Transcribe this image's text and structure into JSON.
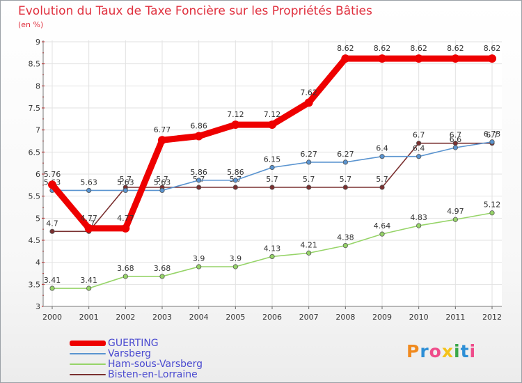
{
  "chart_data": {
    "type": "line",
    "title": "Evolution du Taux de Taxe Foncière sur les Propriétés Bâties",
    "unit": "(en %)",
    "x": [
      "2000",
      "2001",
      "2002",
      "2003",
      "2004",
      "2005",
      "2006",
      "2007",
      "2008",
      "2009",
      "2010",
      "2011",
      "2012"
    ],
    "ylim": [
      3,
      9
    ],
    "yticks": [
      "3",
      "3.5",
      "4",
      "4.5",
      "5",
      "5.5",
      "6",
      "6.5",
      "7",
      "7.5",
      "8",
      "8.5",
      "9"
    ],
    "series": [
      {
        "name": "Ham-sous-Varsberg",
        "color": "#96d468",
        "values": [
          3.41,
          3.41,
          3.68,
          3.68,
          3.9,
          3.9,
          4.13,
          4.21,
          4.38,
          4.64,
          4.83,
          4.97,
          5.12
        ],
        "labels": [
          "3.41",
          "3.41",
          "3.68",
          "3.68",
          "3.9",
          "3.9",
          "4.13",
          "4.21",
          "4.38",
          "4.64",
          "4.83",
          "4.97",
          "5.12"
        ]
      },
      {
        "name": "Bisten-en-Lorraine",
        "color": "#7a3030",
        "values": [
          4.7,
          4.7,
          5.7,
          5.7,
          5.7,
          5.7,
          5.7,
          5.7,
          5.7,
          5.7,
          6.7,
          6.7,
          6.7
        ],
        "labels": [
          "4.7",
          "4.7",
          "5.7",
          "5.7",
          "5.7",
          "5.7",
          "5.7",
          "5.7",
          "5.7",
          "5.7",
          "6.7",
          "6.7",
          "6.7"
        ]
      },
      {
        "name": "Varsberg",
        "color": "#5a94d0",
        "values": [
          5.63,
          5.63,
          5.63,
          5.63,
          5.86,
          5.86,
          6.15,
          6.27,
          6.27,
          6.4,
          6.4,
          6.6,
          6.73
        ],
        "labels": [
          "5.63",
          "5.63",
          "5.63",
          "5.63",
          "5.86",
          "5.86",
          "6.15",
          "6.27",
          "6.27",
          "6.4",
          "6.4",
          "6.6",
          "6.73"
        ]
      },
      {
        "name": "GUERTING",
        "color": "#ee0000",
        "values": [
          5.76,
          4.77,
          4.77,
          6.77,
          6.86,
          7.12,
          7.12,
          7.62,
          8.62,
          8.62,
          8.62,
          8.62,
          8.62
        ],
        "labels": [
          "5.76",
          "4.77",
          "4.77",
          "6.77",
          "6.86",
          "7.12",
          "7.12",
          "7.62",
          "8.62",
          "8.62",
          "8.62",
          "8.62",
          "8.62"
        ]
      }
    ],
    "legend": [
      "GUERTING",
      "Varsberg",
      "Ham-sous-Varsberg",
      "Bisten-en-Lorraine"
    ],
    "legend_position": "bottom-left"
  },
  "logo": {
    "letters": [
      "P",
      "r",
      "o",
      "x",
      "i",
      "t",
      "i"
    ],
    "colors": [
      "#f08a1e",
      "#2d8fd6",
      "#ef4c8a",
      "#f4c21a",
      "#3aa84a",
      "#2d8fd6",
      "#ef4c8a"
    ]
  }
}
